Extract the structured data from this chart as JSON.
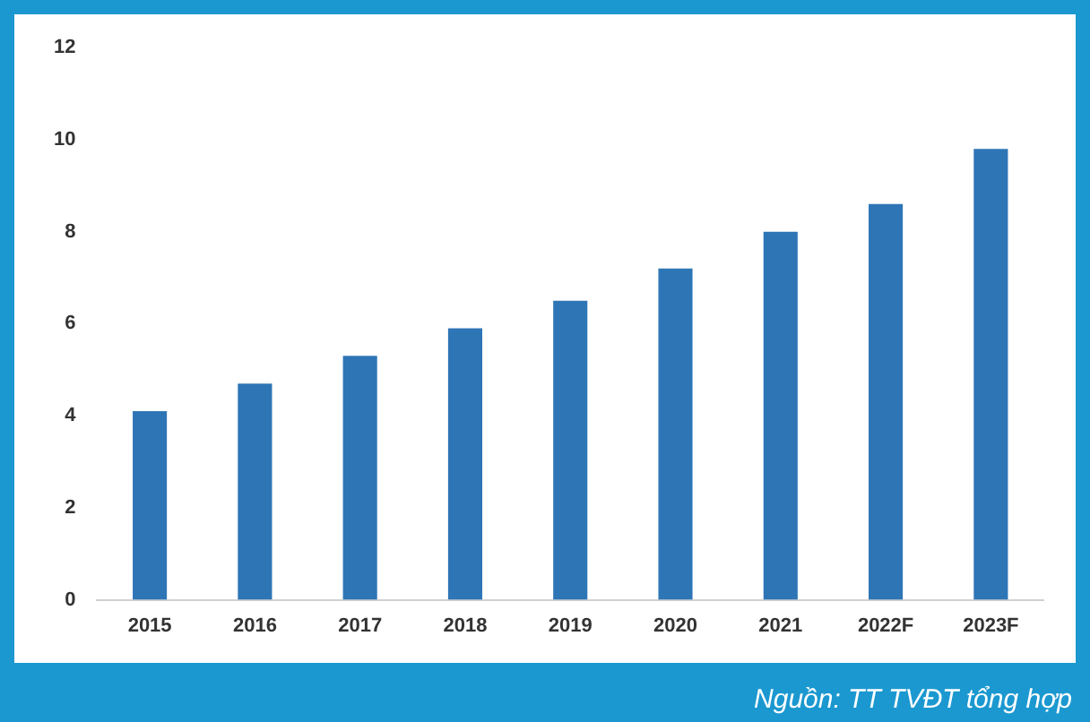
{
  "chart_data": {
    "type": "bar",
    "categories": [
      "2015",
      "2016",
      "2017",
      "2018",
      "2019",
      "2020",
      "2021",
      "2022F",
      "2023F"
    ],
    "values": [
      4.1,
      4.7,
      5.3,
      5.9,
      6.5,
      7.2,
      8.0,
      8.6,
      9.8
    ],
    "color": "#2e75b6",
    "ylim": [
      0,
      12
    ],
    "yticks": [
      0,
      2,
      4,
      6,
      8,
      10,
      12
    ],
    "grid": false,
    "legend": false,
    "annotations": [
      "Nguồn: TT TVĐT tổng hợp"
    ]
  }
}
